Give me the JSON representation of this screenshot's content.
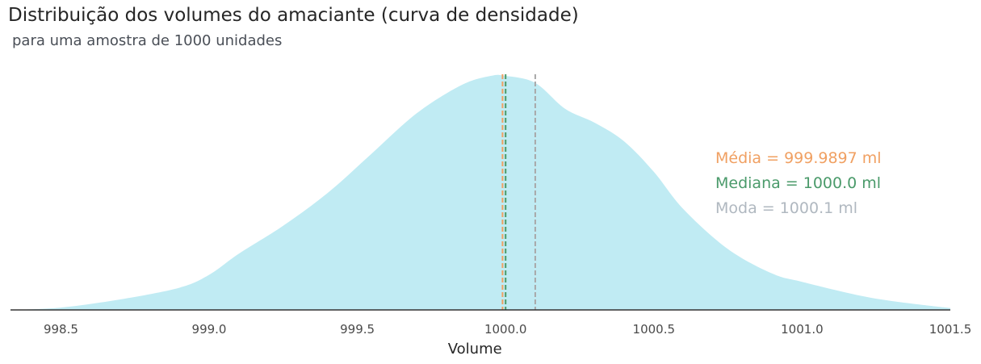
{
  "header": {
    "title": "Distribuição dos volumes do amaciante (curva de densidade)",
    "subtitle": "para uma amostra de 1000 unidades"
  },
  "colors": {
    "fill": "#c0ebf3",
    "axis": "#333333",
    "mean": "#f0a062",
    "median": "#4a9a6a",
    "mode": "#a8a8a8",
    "mode_text": "#b0b8c0"
  },
  "chart_data": {
    "type": "area",
    "title": "Distribuição dos volumes do amaciante (curva de densidade)",
    "subtitle": "para uma amostra de 1000 unidades",
    "xlabel": "Volume",
    "ylabel": "",
    "xlim": [
      998.33,
      1001.5
    ],
    "ylim": [
      0,
      1.0
    ],
    "grid": false,
    "x_ticks": [
      "998.5",
      "999.0",
      "999.5",
      "1000.0",
      "1000.5",
      "1001.0",
      "1001.5"
    ],
    "density": {
      "x": [
        998.33,
        998.5,
        998.7,
        998.9,
        999.0,
        999.1,
        999.25,
        999.4,
        999.55,
        999.7,
        999.85,
        999.95,
        1000.0,
        1000.1,
        1000.2,
        1000.3,
        1000.4,
        1000.5,
        1000.6,
        1000.75,
        1000.9,
        1001.0,
        1001.2,
        1001.35,
        1001.5
      ],
      "y": [
        0.0,
        0.01,
        0.045,
        0.095,
        0.15,
        0.24,
        0.36,
        0.5,
        0.67,
        0.84,
        0.96,
        1.0,
        1.0,
        0.97,
        0.86,
        0.8,
        0.72,
        0.59,
        0.43,
        0.26,
        0.155,
        0.12,
        0.06,
        0.03,
        0.008
      ]
    },
    "reference_lines": [
      {
        "label": "Média = 999.9897 ml",
        "x": 999.9897,
        "color": "#f0a062"
      },
      {
        "label": "Mediana = 1000.0 ml",
        "x": 1000.0,
        "color": "#4a9a6a"
      },
      {
        "label": "Moda = 1000.1 ml",
        "x": 1000.1,
        "color": "#a8a8a8",
        "text_color": "#b0b8c0"
      }
    ]
  }
}
